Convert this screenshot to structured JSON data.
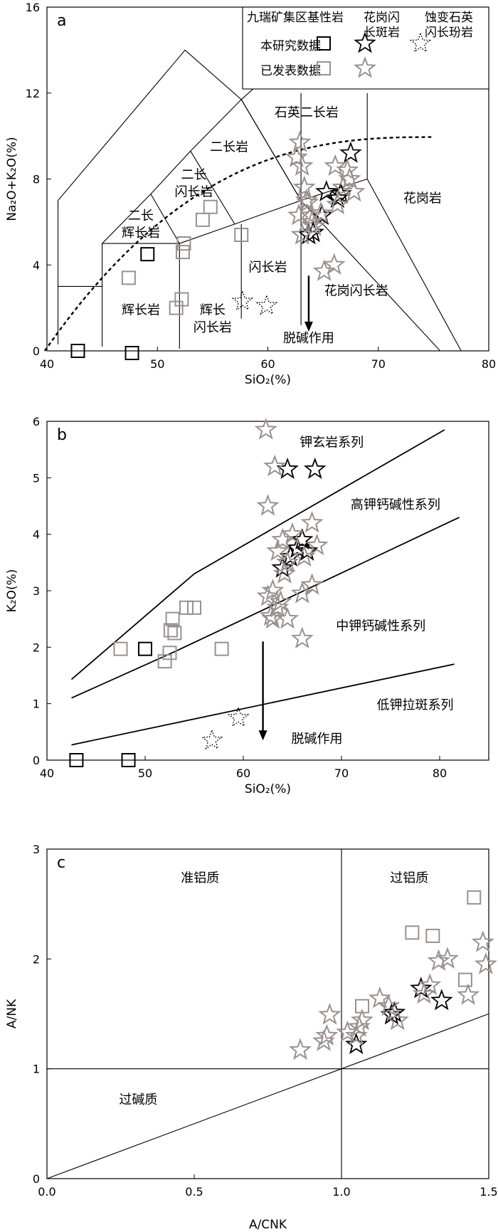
{
  "legend": {
    "title": "九瑞矿集区",
    "col_basic": "基性岩",
    "col_granodiorite_1": "花岗闪",
    "col_granodiorite_2": "长斑岩",
    "col_altered_1": "蚀变石英",
    "col_altered_2": "闪长玢岩",
    "row_this_study": "本研究数据",
    "row_published": "已发表数据"
  },
  "colors": {
    "this_study": "#000000",
    "published": "#9a9090"
  },
  "chart_data": [
    {
      "type": "scatter",
      "panel_label": "a",
      "xlabel": "SiO₂(%)",
      "ylabel": "Na₂O+K₂O(%)",
      "xlim": [
        40,
        80
      ],
      "ylim": [
        0,
        16
      ],
      "xticks": [
        40,
        50,
        60,
        70,
        80
      ],
      "yticks": [
        0,
        4,
        8,
        12,
        16
      ],
      "field_labels": [
        {
          "text": "石英二长岩",
          "x": 63.5,
          "y": 10.9
        },
        {
          "text": "二长岩",
          "x": 56.5,
          "y": 9.3
        },
        {
          "text": "二长",
          "x": 53.3,
          "y": 8.0
        },
        {
          "text": "闪长岩",
          "x": 53.3,
          "y": 7.2
        },
        {
          "text": "二长",
          "x": 48.5,
          "y": 6.1
        },
        {
          "text": "辉长岩",
          "x": 48.5,
          "y": 5.3
        },
        {
          "text": "花岗岩",
          "x": 74.0,
          "y": 6.9
        },
        {
          "text": "闪长岩",
          "x": 60.0,
          "y": 3.7
        },
        {
          "text": "花岗闪长岩",
          "x": 68.0,
          "y": 2.6
        },
        {
          "text": "辉长岩",
          "x": 48.5,
          "y": 1.7
        },
        {
          "text": "辉长",
          "x": 55.0,
          "y": 1.7
        },
        {
          "text": "闪长岩",
          "x": 55.0,
          "y": 0.9
        },
        {
          "text": "脱碱作用",
          "x": 63.7,
          "y": 0.4
        }
      ],
      "series": [
        {
          "marker": "square",
          "source": "this_study",
          "x": [
            42.8,
            47.7,
            49.1
          ],
          "y": [
            0.0,
            -0.1,
            4.5
          ]
        },
        {
          "marker": "square",
          "source": "published",
          "x": [
            47.4,
            51.7,
            52.2,
            52.3,
            52.4,
            54.1,
            54.8,
            57.6
          ],
          "y": [
            3.4,
            2.0,
            2.4,
            4.6,
            5.0,
            6.1,
            6.7,
            5.4
          ]
        },
        {
          "marker": "star",
          "source": "this_study",
          "x": [
            63.7,
            64.1,
            64.9,
            65.3,
            66.3,
            66.6,
            67.5
          ],
          "y": [
            5.4,
            5.5,
            6.3,
            7.4,
            7.1,
            7.3,
            9.2
          ]
        },
        {
          "marker": "star",
          "source": "published",
          "x": [
            62.6,
            62.9,
            63.1,
            63.3,
            63.6,
            63.9,
            64.2,
            64.8,
            65.1,
            66.0,
            66.3,
            66.8,
            67.2,
            67.4,
            67.8,
            63.1,
            63.5,
            64.0,
            66.1,
            62.8
          ],
          "y": [
            9.0,
            9.7,
            8.6,
            7.6,
            6.9,
            6.3,
            5.8,
            6.4,
            3.7,
            4.0,
            6.8,
            7.6,
            8.4,
            8.0,
            7.4,
            5.4,
            7.0,
            6.0,
            8.6,
            6.3
          ]
        },
        {
          "marker": "star-dotted",
          "source": "altered",
          "x": [
            57.7,
            59.9
          ],
          "y": [
            2.3,
            2.1
          ]
        }
      ],
      "arrow": {
        "x": 63.7,
        "y_from": 3.5,
        "y_to": 0.9
      },
      "curve": "dashed alkaline–subalkaline divide"
    },
    {
      "type": "scatter",
      "panel_label": "b",
      "xlabel": "SiO₂(%)",
      "ylabel": "K₂O(%)",
      "xlim": [
        40,
        85
      ],
      "ylim": [
        0,
        6
      ],
      "xticks": [
        40,
        50,
        60,
        70,
        80
      ],
      "yticks": [
        0,
        1,
        2,
        3,
        4,
        5,
        6
      ],
      "field_labels": [
        {
          "text": "钾玄岩系列",
          "x": 69.0,
          "y": 5.55
        },
        {
          "text": "高钾钙碱性系列",
          "x": 75.5,
          "y": 4.45
        },
        {
          "text": "中钾钙碱性系列",
          "x": 74.0,
          "y": 2.3
        },
        {
          "text": "低钾拉斑系列",
          "x": 77.5,
          "y": 0.9
        },
        {
          "text": "脱碱作用",
          "x": 67.5,
          "y": 0.3
        }
      ],
      "series": [
        {
          "marker": "square",
          "source": "this_study",
          "x": [
            43.0,
            48.3,
            50.0
          ],
          "y": [
            0.0,
            0.0,
            1.97
          ]
        },
        {
          "marker": "square",
          "source": "published",
          "x": [
            47.5,
            52.0,
            52.5,
            52.6,
            52.8,
            53.0,
            54.2,
            55.0,
            57.8
          ],
          "y": [
            1.97,
            1.75,
            1.9,
            2.3,
            2.5,
            2.25,
            2.7,
            2.7,
            1.97
          ]
        },
        {
          "marker": "star",
          "source": "this_study",
          "x": [
            64.5,
            67.3,
            64.0,
            64.8,
            65.5,
            66.0,
            66.5
          ],
          "y": [
            5.15,
            5.15,
            3.4,
            3.6,
            3.75,
            3.9,
            3.7
          ]
        },
        {
          "marker": "star",
          "source": "published",
          "x": [
            62.3,
            63.2,
            62.5,
            63.5,
            64.0,
            64.5,
            65.0,
            66.2,
            67.0,
            67.5,
            62.5,
            63.0,
            63.5,
            64.5,
            66.0,
            67.0,
            63.0,
            63.8,
            66.0,
            62.8,
            64.2
          ],
          "y": [
            5.85,
            5.2,
            4.5,
            3.7,
            3.9,
            3.5,
            4.0,
            3.6,
            4.2,
            3.8,
            2.9,
            3.0,
            2.7,
            2.5,
            2.95,
            3.1,
            2.5,
            2.8,
            2.15,
            2.55,
            3.3
          ]
        },
        {
          "marker": "star-dotted",
          "source": "altered",
          "x": [
            56.8,
            59.5
          ],
          "y": [
            0.35,
            0.75
          ]
        }
      ],
      "arrow": {
        "x": 62.0,
        "y_from": 2.1,
        "y_to": 0.35
      }
    },
    {
      "type": "scatter",
      "panel_label": "c",
      "xlabel": "A/CNK",
      "ylabel": "A/NK",
      "xlim": [
        0,
        1.5
      ],
      "ylim": [
        0,
        3
      ],
      "xticks": [
        0.0,
        0.5,
        1.0,
        1.5
      ],
      "xtick_labels": [
        "0.0",
        "0.5",
        "1.0",
        "1.5"
      ],
      "yticks": [
        0,
        1,
        2,
        3
      ],
      "field_labels": [
        {
          "text": "准铝质",
          "x": 0.52,
          "y": 2.7
        },
        {
          "text": "过铝质",
          "x": 1.23,
          "y": 2.7
        },
        {
          "text": "过碱质",
          "x": 0.31,
          "y": 0.68
        }
      ],
      "series": [
        {
          "marker": "square",
          "source": "published",
          "x": [
            1.07,
            1.24,
            1.31,
            1.42,
            1.45
          ],
          "y": [
            1.57,
            2.24,
            2.21,
            1.81,
            2.56
          ]
        },
        {
          "marker": "star",
          "source": "this_study",
          "x": [
            1.05,
            1.17,
            1.18,
            1.27,
            1.34
          ],
          "y": [
            1.22,
            1.49,
            1.51,
            1.73,
            1.62
          ]
        },
        {
          "marker": "star",
          "source": "published",
          "x": [
            0.86,
            0.95,
            0.96,
            1.02,
            1.06,
            1.07,
            1.13,
            1.16,
            1.19,
            1.28,
            1.3,
            1.33,
            1.36,
            1.43,
            1.48,
            1.49,
            0.94,
            1.05
          ],
          "y": [
            1.17,
            1.3,
            1.49,
            1.33,
            1.38,
            1.44,
            1.64,
            1.57,
            1.44,
            1.68,
            1.76,
            1.98,
            2.0,
            1.67,
            2.15,
            1.95,
            1.25,
            1.3
          ]
        }
      ]
    }
  ]
}
